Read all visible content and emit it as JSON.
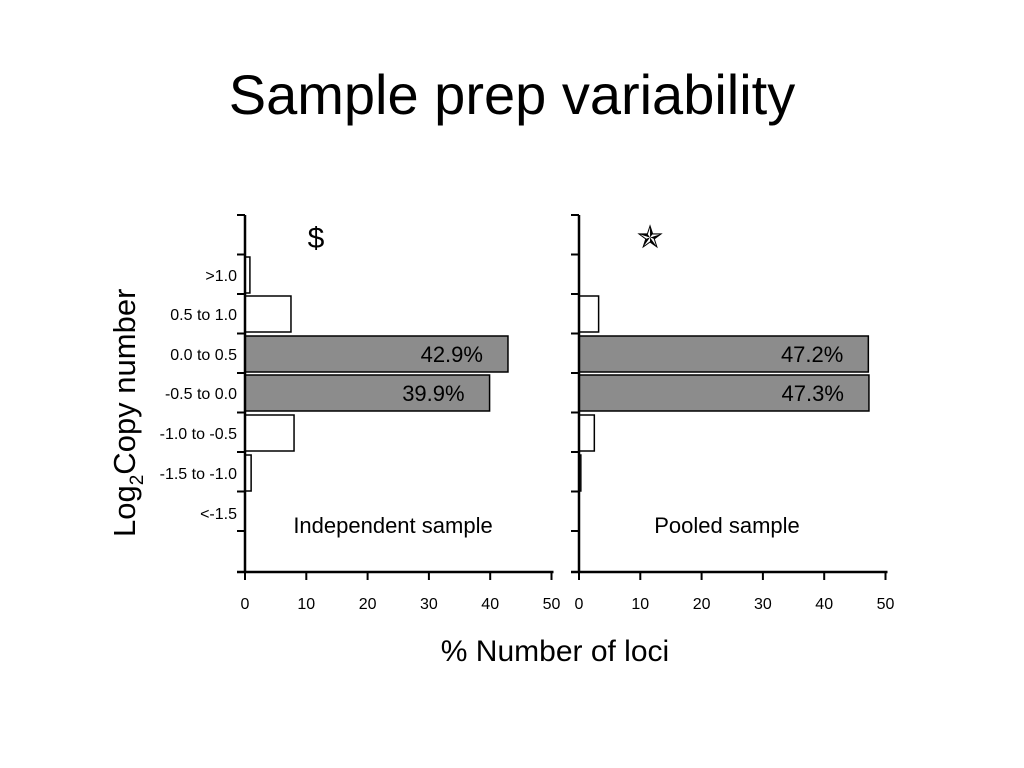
{
  "slide": {
    "title": "Sample prep variability"
  },
  "chart_data": {
    "type": "bar",
    "orientation": "horizontal",
    "categories": [
      ">1.0",
      "0.5 to 1.0",
      "0.0 to 0.5",
      "-0.5 to 0.0",
      "-1.0 to -0.5",
      "-1.5 to -1.0",
      "<-1.5"
    ],
    "ylabel_main": "Log",
    "ylabel_sub": "2",
    "ylabel_rest": "Copy number",
    "xlabel": "% Number of loci",
    "xlim": [
      0,
      50
    ],
    "xticks": [
      "0",
      "10",
      "20",
      "30",
      "40",
      "50"
    ],
    "panels": [
      {
        "caption": "Independent sample",
        "symbol": "$",
        "values": [
          0.8,
          7.5,
          42.9,
          39.9,
          8,
          1,
          0
        ],
        "labels": [
          "",
          "",
          "42.9%",
          "39.9%",
          "",
          "",
          ""
        ]
      },
      {
        "caption": "Pooled sample",
        "symbol": "✯",
        "values": [
          0,
          3.2,
          47.2,
          47.3,
          2.5,
          0.3,
          0
        ],
        "labels": [
          "",
          "",
          "47.2%",
          "47.3%",
          "",
          "",
          ""
        ]
      }
    ],
    "colors": {
      "highlight": "#8c8c8c",
      "plain": "#ffffff",
      "label_text": "#ffffff"
    }
  }
}
